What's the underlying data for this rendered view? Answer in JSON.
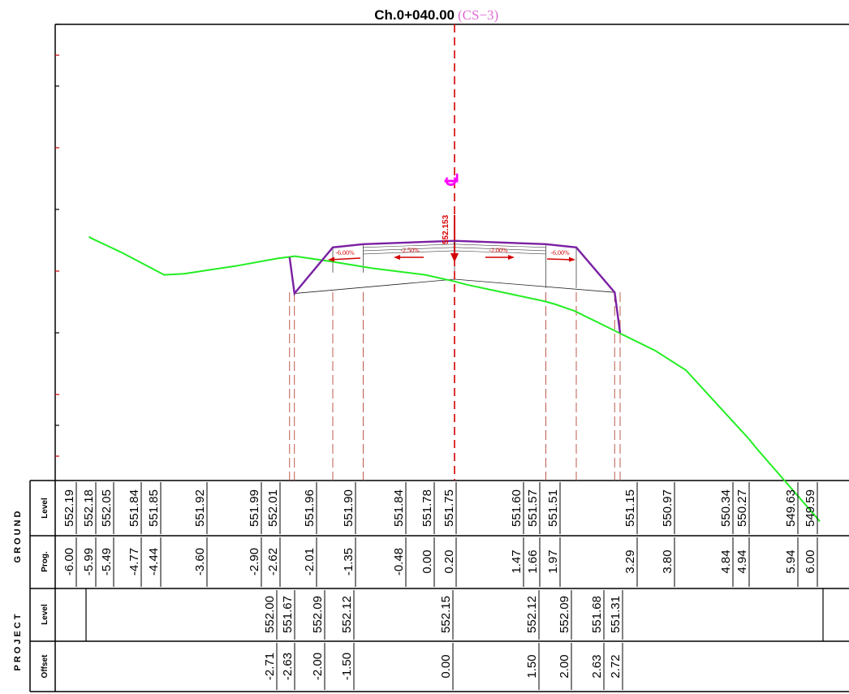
{
  "title": {
    "chainage": "Ch.0+040.00",
    "section": "(CS−3)"
  },
  "centerline": {
    "symbol": "℄",
    "level_label": "552.153"
  },
  "slope_labels": [
    "-6.00%",
    "-2.50%",
    "-2.00%",
    "-6.00%"
  ],
  "groups": {
    "ground": "GROUND",
    "project": "PROJECT"
  },
  "row_labels": {
    "ground_level": "Level",
    "ground_prog": "Prog.",
    "project_level": "Level",
    "project_offset": "Offset"
  },
  "ground_points": [
    {
      "offset": -6.0,
      "level": 552.19,
      "level_label": "552.19",
      "prog_label": "-6.00"
    },
    {
      "offset": -5.99,
      "level": 552.18,
      "level_label": "552.18",
      "prog_label": "-5.99"
    },
    {
      "offset": -5.49,
      "level": 552.05,
      "level_label": "552.05",
      "prog_label": "-5.49"
    },
    {
      "offset": -4.77,
      "level": 551.84,
      "level_label": "551.84",
      "prog_label": "-4.77"
    },
    {
      "offset": -4.44,
      "level": 551.85,
      "level_label": "551.85",
      "prog_label": "-4.44"
    },
    {
      "offset": -3.6,
      "level": 551.92,
      "level_label": "551.92",
      "prog_label": "-3.60"
    },
    {
      "offset": -2.9,
      "level": 551.99,
      "level_label": "551.99",
      "prog_label": "-2.90"
    },
    {
      "offset": -2.62,
      "level": 552.01,
      "level_label": "552.01",
      "prog_label": "-2.62"
    },
    {
      "offset": -2.01,
      "level": 551.96,
      "level_label": "551.96",
      "prog_label": "-2.01"
    },
    {
      "offset": -1.35,
      "level": 551.9,
      "level_label": "551.90",
      "prog_label": "-1.35"
    },
    {
      "offset": -0.48,
      "level": 551.84,
      "level_label": "551.84",
      "prog_label": "-0.48"
    },
    {
      "offset": 0.0,
      "level": 551.78,
      "level_label": "551.78",
      "prog_label": "0.00"
    },
    {
      "offset": 0.2,
      "level": 551.75,
      "level_label": "551.75",
      "prog_label": "0.20"
    },
    {
      "offset": 1.47,
      "level": 551.6,
      "level_label": "551.60",
      "prog_label": "1.47"
    },
    {
      "offset": 1.66,
      "level": 551.57,
      "level_label": "551.57",
      "prog_label": "1.66"
    },
    {
      "offset": 1.97,
      "level": 551.51,
      "level_label": "551.51",
      "prog_label": "1.97"
    },
    {
      "offset": 3.29,
      "level": 551.15,
      "level_label": "551.15",
      "prog_label": "3.29"
    },
    {
      "offset": 3.8,
      "level": 550.97,
      "level_label": "550.97",
      "prog_label": "3.80"
    },
    {
      "offset": 4.84,
      "level": 550.34,
      "level_label": "550.34",
      "prog_label": "4.84"
    },
    {
      "offset": 4.94,
      "level": 550.27,
      "level_label": "550.27",
      "prog_label": "4.94"
    },
    {
      "offset": 5.94,
      "level": 549.63,
      "level_label": "549.63",
      "prog_label": "5.94"
    },
    {
      "offset": 6.0,
      "level": 549.59,
      "level_label": "549.59",
      "prog_label": "6.00"
    }
  ],
  "project_points": [
    {
      "offset": -2.71,
      "level": 552.0,
      "level_label": "552.00",
      "offset_label": "-2.71"
    },
    {
      "offset": -2.63,
      "level": 551.67,
      "level_label": "551.67",
      "offset_label": "-2.63"
    },
    {
      "offset": -2.0,
      "level": 552.09,
      "level_label": "552.09",
      "offset_label": "-2.00"
    },
    {
      "offset": -1.5,
      "level": 552.12,
      "level_label": "552.12",
      "offset_label": "-1.50"
    },
    {
      "offset": 0.0,
      "level": 552.15,
      "level_label": "552.15",
      "offset_label": "0.00"
    },
    {
      "offset": 1.5,
      "level": 552.12,
      "level_label": "552.12",
      "offset_label": "1.50"
    },
    {
      "offset": 2.0,
      "level": 552.09,
      "level_label": "552.09",
      "offset_label": "2.00"
    },
    {
      "offset": 2.63,
      "level": 551.68,
      "level_label": "551.68",
      "offset_label": "2.63"
    },
    {
      "offset": 2.72,
      "level": 551.31,
      "level_label": "551.31",
      "offset_label": "2.72"
    }
  ],
  "colors": {
    "ground_line": "#22ee22",
    "project_line": "#7a1fa2",
    "centerline": "#d40000",
    "guide_lines": "#b54a3a",
    "title_sub": "#e06bd4"
  }
}
